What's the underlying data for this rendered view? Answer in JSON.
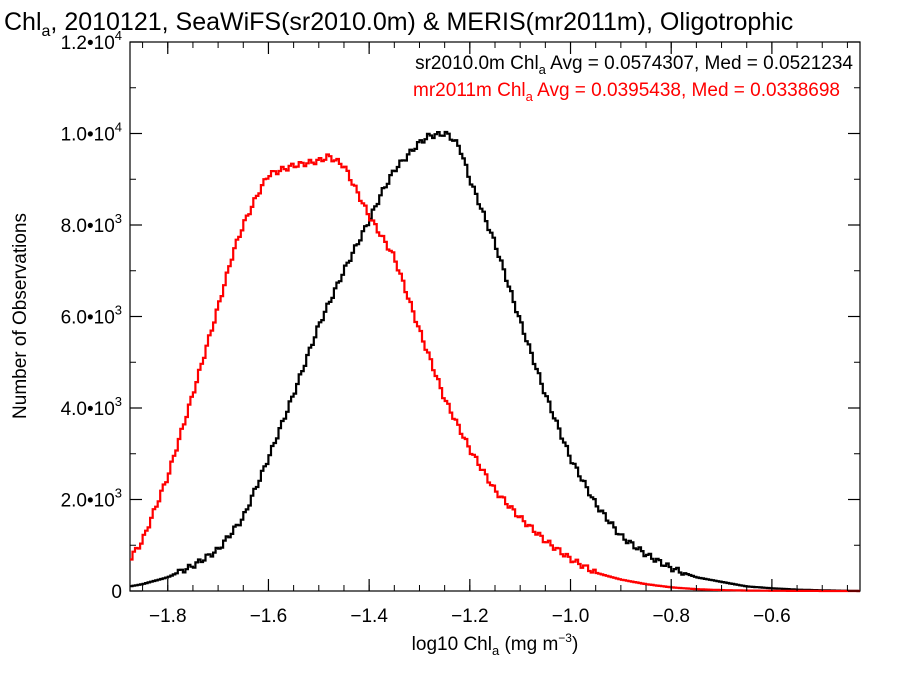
{
  "chart_data": {
    "type": "line",
    "title": {
      "pre": "Chl",
      "sub": "a",
      "post": ", 2010121, SeaWiFS(sr2010.0m) & MERIS(mr2011m), Oligotrophic"
    },
    "xlabel": {
      "pre": "log10 Chl",
      "sub": "a",
      "mid": " (mg m",
      "sup": "−3",
      "post": ")"
    },
    "ylabel": "Number of Observations",
    "xlim": [
      -1.875,
      -0.425
    ],
    "ylim": [
      0,
      12000
    ],
    "x_ticks": [
      {
        "value": -1.8,
        "label": "−1.8"
      },
      {
        "value": -1.6,
        "label": "−1.6"
      },
      {
        "value": -1.4,
        "label": "−1.4"
      },
      {
        "value": -1.2,
        "label": "−1.2"
      },
      {
        "value": -1.0,
        "label": "−1.0"
      },
      {
        "value": -0.8,
        "label": "−0.8"
      },
      {
        "value": -0.6,
        "label": "−0.6"
      }
    ],
    "y_ticks": [
      {
        "value": 0,
        "mant": "0",
        "exp": ""
      },
      {
        "value": 2000,
        "mant": "2.0•10",
        "exp": "3"
      },
      {
        "value": 4000,
        "mant": "4.0•10",
        "exp": "3"
      },
      {
        "value": 6000,
        "mant": "6.0•10",
        "exp": "3"
      },
      {
        "value": 8000,
        "mant": "8.0•10",
        "exp": "3"
      },
      {
        "value": 10000,
        "mant": "1.0•10",
        "exp": "4"
      },
      {
        "value": 12000,
        "mant": "1.2•10",
        "exp": "4"
      }
    ],
    "series": [
      {
        "name": "sr2010.0m",
        "color": "#000000",
        "stats": {
          "pre": "sr2010.0m Chl",
          "sub": "a",
          "post": " Avg = 0.0574307, Med = 0.0521234"
        },
        "x": [
          -1.875,
          -1.85,
          -1.8,
          -1.75,
          -1.7,
          -1.65,
          -1.6,
          -1.55,
          -1.5,
          -1.45,
          -1.4,
          -1.375,
          -1.35,
          -1.3,
          -1.28,
          -1.26,
          -1.25,
          -1.24,
          -1.22,
          -1.2,
          -1.15,
          -1.1,
          -1.05,
          -1.0,
          -0.95,
          -0.9,
          -0.85,
          -0.8,
          -0.75,
          -0.7,
          -0.65,
          -0.6,
          -0.55,
          -0.5,
          -0.425
        ],
        "y": [
          100,
          150,
          300,
          550,
          900,
          1600,
          2900,
          4300,
          5800,
          7000,
          8100,
          8700,
          9200,
          9800,
          9950,
          9980,
          10000,
          9950,
          9700,
          9000,
          7600,
          5900,
          4300,
          2900,
          1900,
          1200,
          800,
          500,
          300,
          200,
          100,
          60,
          30,
          15,
          0
        ]
      },
      {
        "name": "mr2011m",
        "color": "#ff0000",
        "stats": {
          "pre": "mr2011m Chl",
          "sub": "a",
          "post": " Avg = 0.0395438, Med = 0.0338698"
        },
        "x": [
          -1.875,
          -1.85,
          -1.8,
          -1.75,
          -1.7,
          -1.67,
          -1.65,
          -1.62,
          -1.6,
          -1.55,
          -1.5,
          -1.48,
          -1.45,
          -1.4,
          -1.35,
          -1.3,
          -1.25,
          -1.2,
          -1.15,
          -1.1,
          -1.05,
          -1.0,
          -0.95,
          -0.9,
          -0.85,
          -0.8,
          -0.75,
          -0.7,
          -0.65,
          -0.6,
          -0.55,
          -0.5,
          -0.425
        ],
        "y": [
          700,
          1100,
          2500,
          4300,
          6200,
          7400,
          8000,
          8700,
          9100,
          9300,
          9400,
          9500,
          9300,
          8200,
          7300,
          5700,
          4200,
          3100,
          2200,
          1600,
          1100,
          700,
          400,
          250,
          150,
          80,
          40,
          20,
          10,
          5,
          2,
          1,
          0
        ]
      }
    ],
    "grid": false,
    "legend": "top-right"
  }
}
